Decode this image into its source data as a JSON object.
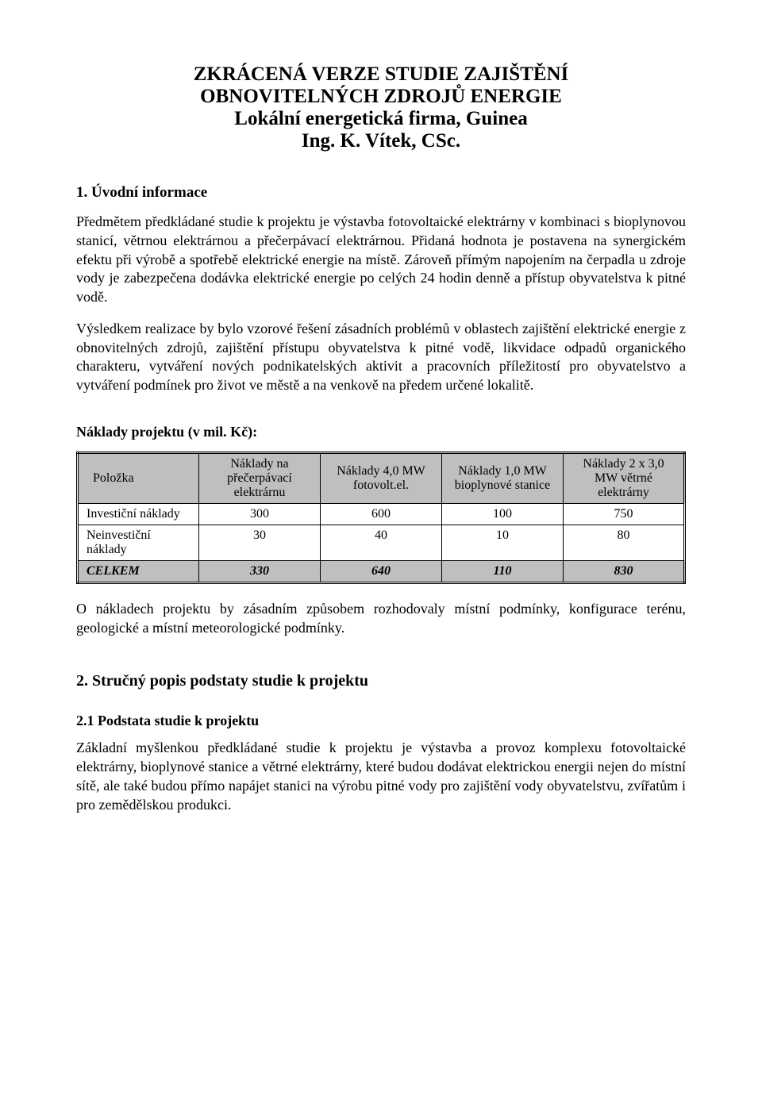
{
  "colors": {
    "page_bg": "#ffffff",
    "text": "#000000",
    "header_bg": "#bfbfbf",
    "border": "#000000"
  },
  "title": {
    "line1": "ZKRÁCENÁ VERZE STUDIE ZAJIŠTĚNÍ",
    "line2": "OBNOVITELNÝCH ZDROJŮ ENERGIE",
    "subtitle1": "Lokální energetická firma, Guinea",
    "subtitle2": "Ing. K. Vítek, CSc."
  },
  "section1": {
    "heading": "1. Úvodní informace",
    "para1": "Předmětem předkládané studie k projektu je výstavba fotovoltaické elektrárny v kombinaci s bioplynovou stanicí, větrnou elektrárnou a přečerpávací elektrárnou. Přidaná hodnota je postavena na synergickém efektu při výrobě a spotřebě elektrické energie na místě. Zároveň přímým napojením na čerpadla u zdroje vody je zabezpečena dodávka elektrické energie po celých 24 hodin denně a přístup obyvatelstva k pitné vodě.",
    "para2": "Výsledkem realizace by bylo vzorové řešení zásadních problémů v oblastech zajištění elektrické energie z obnovitelných zdrojů, zajištění přístupu obyvatelstva k pitné vodě, likvidace odpadů organického charakteru, vytváření nových podnikatelských aktivit a pracovních příležitostí pro obyvatelstvo a vytváření podmínek pro život ve městě a na venkově na předem určené lokalitě."
  },
  "costs_table": {
    "caption": "Náklady projektu (v mil. Kč):",
    "columns": [
      "Položka",
      "Náklady na přečerpávací elektrárnu",
      "Náklady 4,0 MW fotovolt.el.",
      "Náklady 1,0 MW bioplynové stanice",
      "Náklady 2 x 3,0 MW větrné elektrárny"
    ],
    "rows": [
      {
        "label": "Investiční náklady",
        "values": [
          "300",
          "600",
          "100",
          "750"
        ]
      },
      {
        "label": "Neinvestiční náklady",
        "values": [
          "30",
          "40",
          "10",
          "80"
        ]
      }
    ],
    "total": {
      "label": "CELKEM",
      "values": [
        "330",
        "640",
        "110",
        "830"
      ]
    }
  },
  "after_table_para": "O nákladech projektu by zásadním způsobem rozhodovaly místní podmínky, konfigurace terénu, geologické a místní meteorologické podmínky.",
  "section2": {
    "heading": "2. Stručný popis podstaty studie k projektu",
    "sub1": {
      "heading": "2.1 Podstata studie k projektu",
      "para": "Základní myšlenkou předkládané studie k projektu je výstavba a provoz komplexu fotovoltaické elektrárny, bioplynové stanice a větrné elektrárny, které budou dodávat elektrickou energii nejen do místní sítě, ale také budou přímo napájet stanici na výrobu pitné vody pro zajištění vody obyvatelstvu, zvířatům i pro zemědělskou produkci."
    }
  }
}
